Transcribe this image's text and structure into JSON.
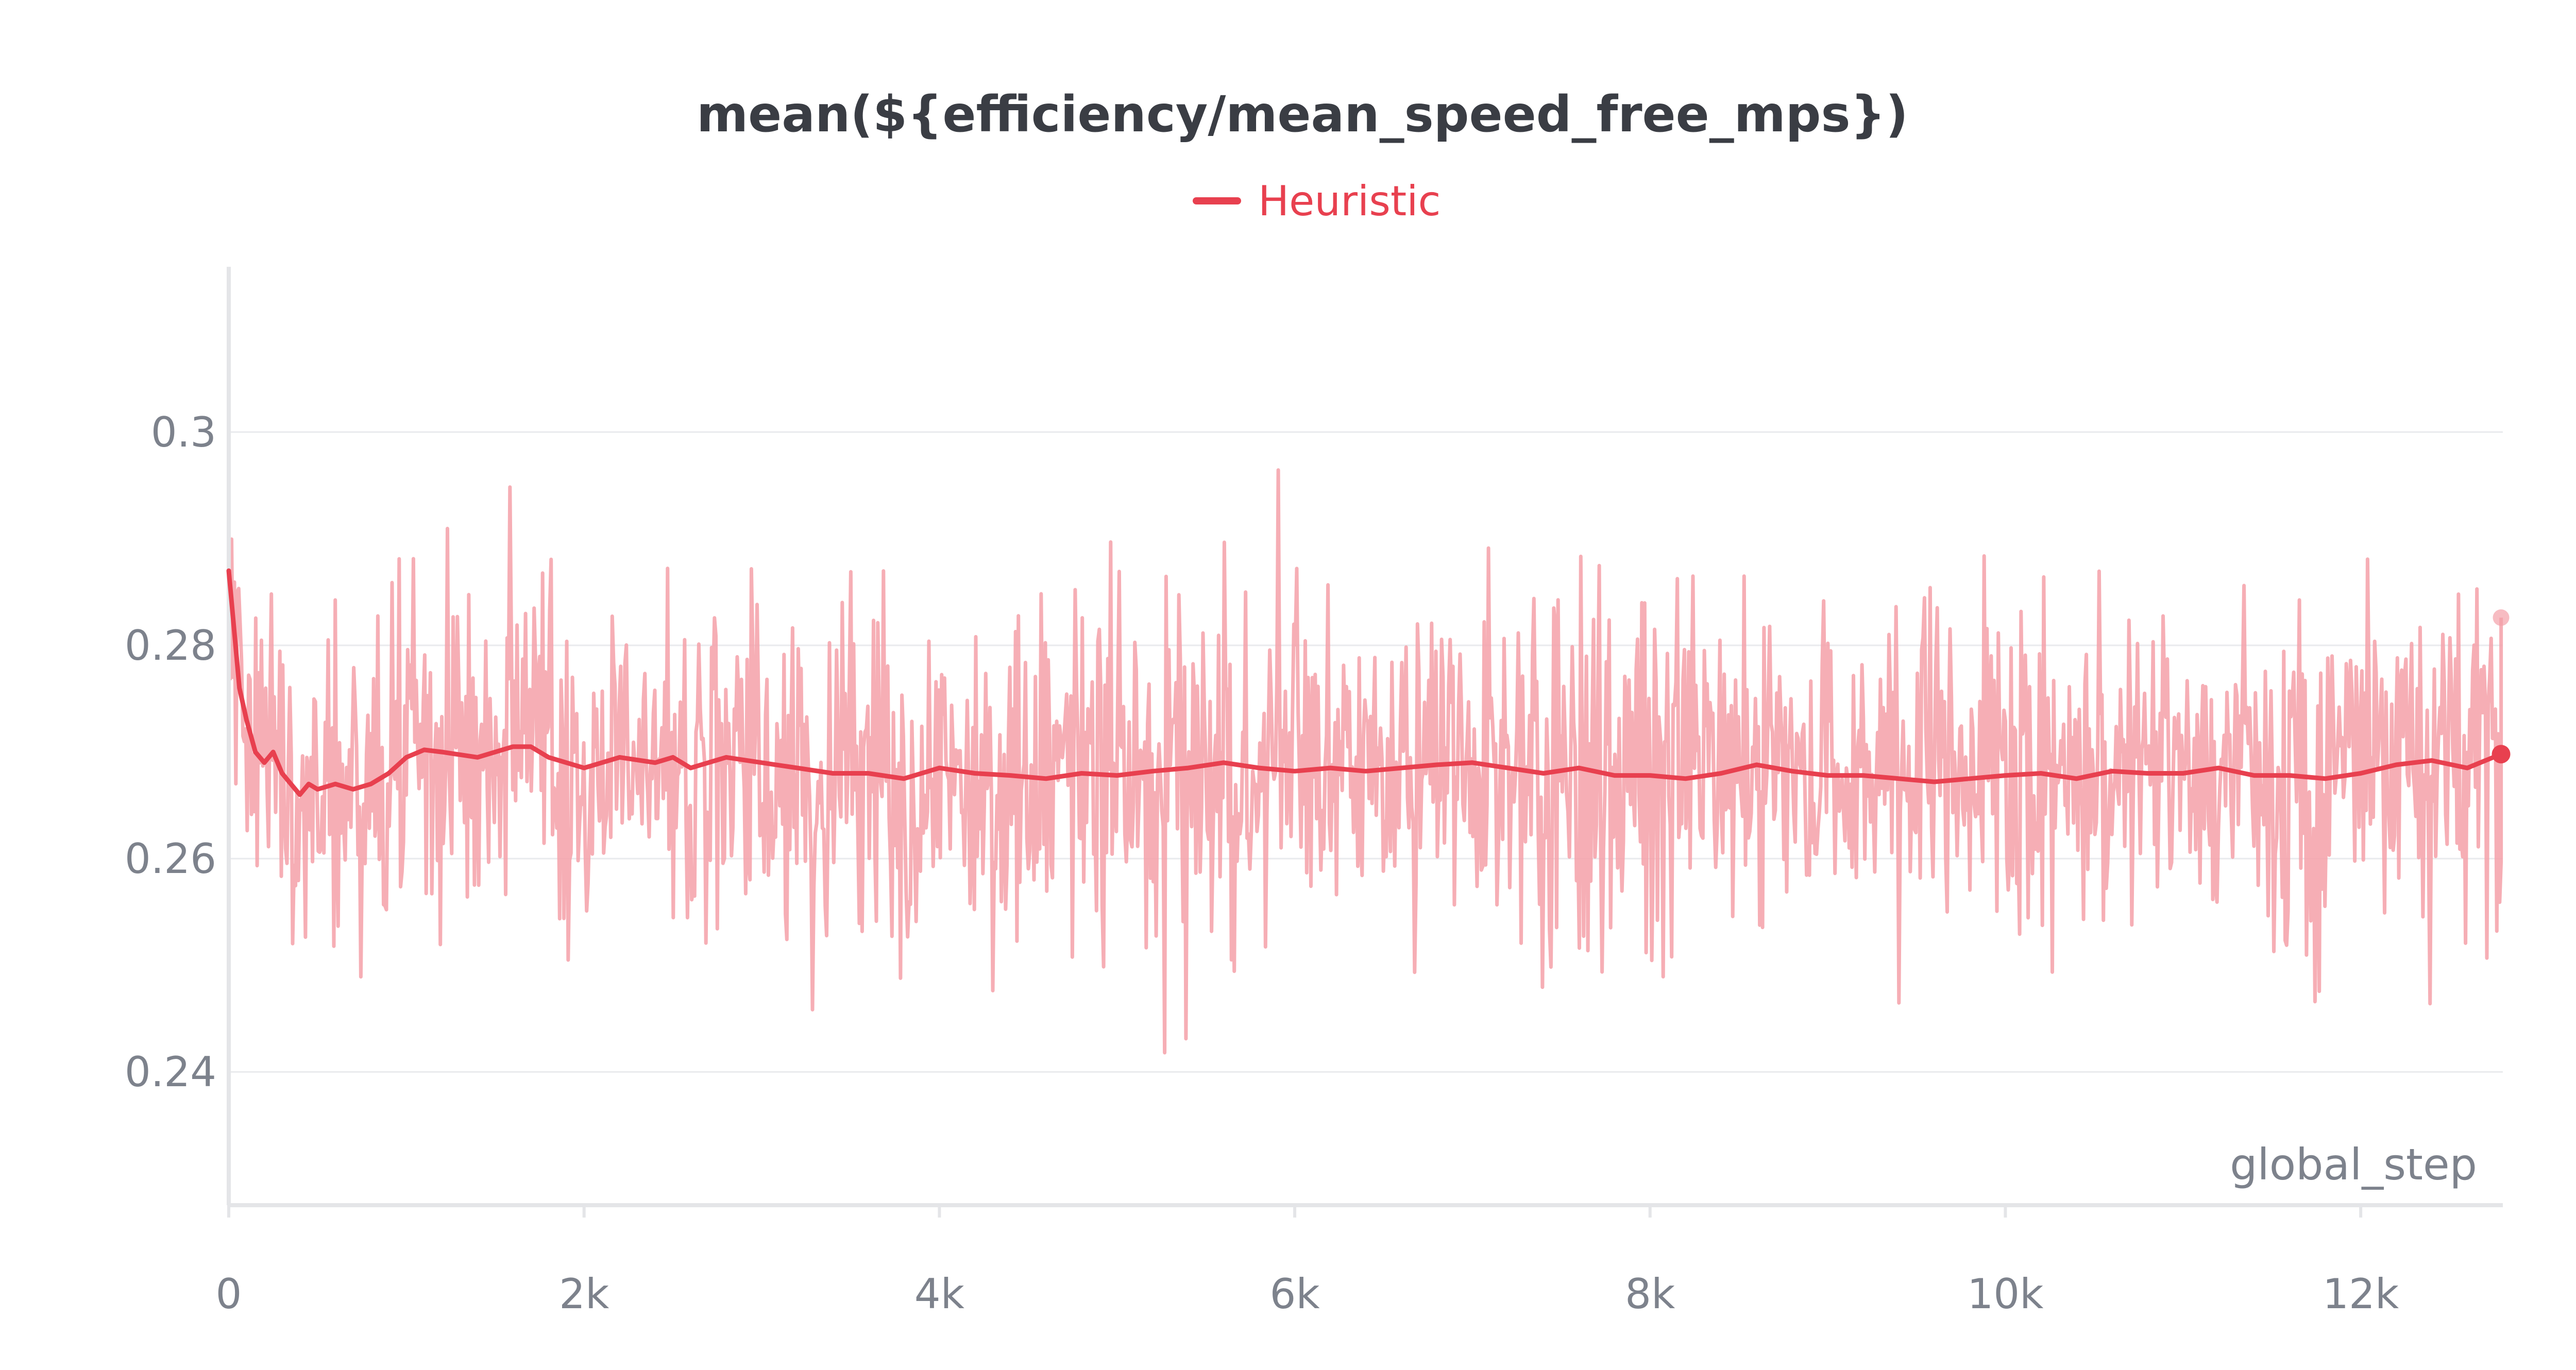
{
  "chart_data": {
    "type": "line",
    "title": "mean(${efficiency/mean_speed_free_mps})",
    "xlabel": "global_step",
    "ylabel": "",
    "xlim": [
      0,
      12800
    ],
    "ylim": [
      0.2275,
      0.3155
    ],
    "grid": true,
    "legend_position": "top-center",
    "x_ticks": [
      0,
      2000,
      4000,
      6000,
      8000,
      10000,
      12000
    ],
    "x_tick_labels": [
      "0",
      "2k",
      "4k",
      "6k",
      "8k",
      "10k",
      "12k"
    ],
    "y_ticks": [
      0.24,
      0.26,
      0.28,
      0.3
    ],
    "y_tick_labels": [
      "0.24",
      "0.26",
      "0.28",
      "0.3"
    ],
    "series": [
      {
        "name": "Heuristic",
        "color": "#e8404f",
        "raw_color": "#f4a0a8",
        "smoothed": {
          "x": [
            0,
            60,
            100,
            150,
            200,
            250,
            300,
            350,
            400,
            450,
            500,
            600,
            700,
            800,
            900,
            1000,
            1100,
            1200,
            1400,
            1500,
            1600,
            1700,
            1800,
            2000,
            2200,
            2400,
            2500,
            2600,
            2800,
            3000,
            3200,
            3400,
            3600,
            3800,
            4000,
            4200,
            4400,
            4600,
            4800,
            5000,
            5200,
            5400,
            5600,
            5800,
            6000,
            6200,
            6400,
            6600,
            6800,
            7000,
            7200,
            7400,
            7600,
            7800,
            8000,
            8200,
            8400,
            8600,
            8800,
            9000,
            9200,
            9400,
            9600,
            9800,
            10000,
            10200,
            10400,
            10600,
            10800,
            11000,
            11200,
            11400,
            11600,
            11800,
            12000,
            12200,
            12400,
            12600,
            12790
          ],
          "y": [
            0.287,
            0.276,
            0.273,
            0.27,
            0.269,
            0.27,
            0.268,
            0.267,
            0.266,
            0.267,
            0.2665,
            0.267,
            0.2665,
            0.267,
            0.268,
            0.2695,
            0.2702,
            0.27,
            0.2695,
            0.27,
            0.2705,
            0.2705,
            0.2695,
            0.2685,
            0.2695,
            0.269,
            0.2695,
            0.2685,
            0.2695,
            0.269,
            0.2685,
            0.268,
            0.268,
            0.2675,
            0.2685,
            0.268,
            0.2678,
            0.2675,
            0.268,
            0.2678,
            0.2682,
            0.2685,
            0.269,
            0.2685,
            0.2682,
            0.2685,
            0.2682,
            0.2685,
            0.2688,
            0.269,
            0.2685,
            0.268,
            0.2685,
            0.2678,
            0.2678,
            0.2675,
            0.268,
            0.2688,
            0.2682,
            0.2678,
            0.2678,
            0.2675,
            0.2672,
            0.2675,
            0.2678,
            0.268,
            0.2675,
            0.2682,
            0.268,
            0.268,
            0.2685,
            0.2678,
            0.2678,
            0.2675,
            0.268,
            0.2688,
            0.2692,
            0.2685,
            0.2698
          ]
        },
        "end_points": {
          "smoothed": [
            12790,
            0.2698
          ],
          "raw": [
            12790,
            0.2826
          ]
        }
      }
    ]
  }
}
